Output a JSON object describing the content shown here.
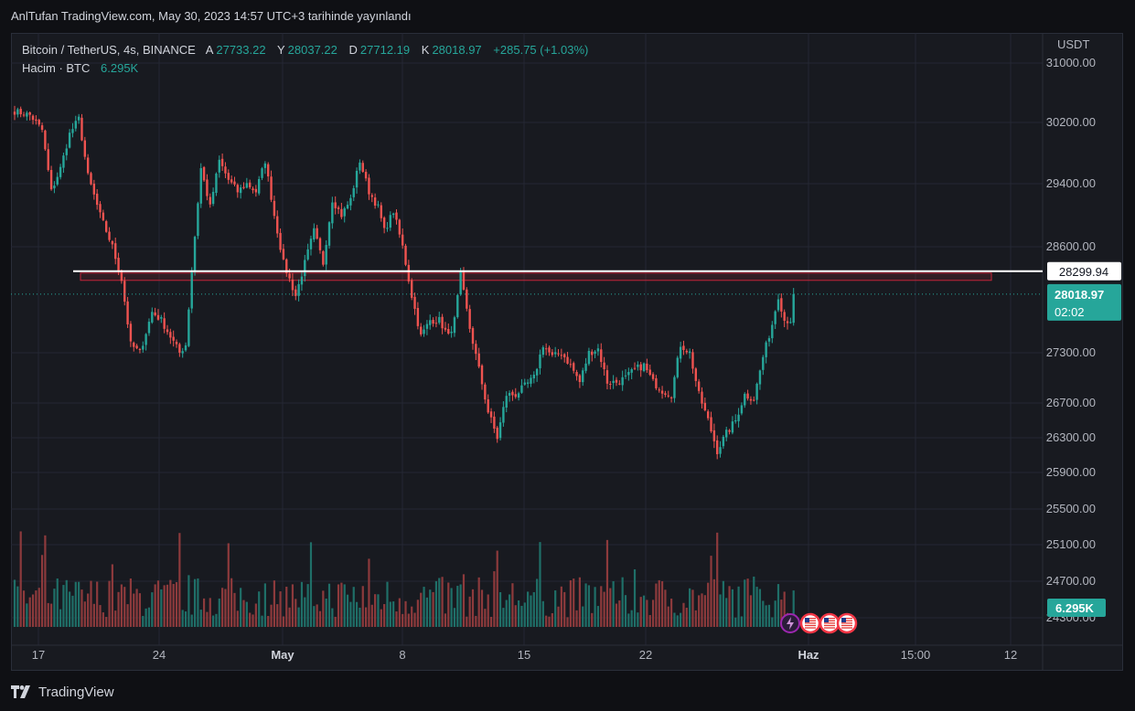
{
  "header": {
    "text": "AnlTufan TradingView.com, May 30, 2023 14:57 UTC+3 tarihinde yayınlandı"
  },
  "legend": {
    "symbol": "Bitcoin / TetherUS, 4s, BINANCE",
    "open_label": "A",
    "open": "27733.22",
    "high_label": "Y",
    "high": "28037.22",
    "low_label": "D",
    "low": "27712.19",
    "close_label": "K",
    "close": "28018.97",
    "change": "+285.75 (+1.03%)",
    "volume_label": "Hacim · BTC",
    "volume_value": "6.295K"
  },
  "footer": {
    "brand": "TradingView"
  },
  "colors": {
    "up": "#26a69a",
    "down": "#ef5350",
    "grid": "#242733",
    "text": "#b2b5be",
    "volume_up": "#1f6f68",
    "volume_down": "#8d3a3c"
  },
  "chart_data": {
    "type": "candlestick",
    "currency": "USDT",
    "y_ticks": [
      "31000.00",
      "30200.00",
      "29400.00",
      "28600.00",
      "27300.00",
      "26700.00",
      "26300.00",
      "25900.00",
      "25500.00",
      "25100.00",
      "24700.00",
      "24300.00"
    ],
    "x_ticks": [
      "17",
      "24",
      "May",
      "8",
      "15",
      "22",
      "Haz",
      "15:00",
      "12"
    ],
    "last_price": "28018.97",
    "countdown": "02:02",
    "horizontal_line_price": "28299.94",
    "volume_last": "6.295K",
    "zone": {
      "from": 28200,
      "to": 28330
    },
    "events": [
      "lightning-icon",
      "us-flag-icon",
      "us-flag-icon",
      "us-flag-icon"
    ],
    "anchors": [
      [
        0,
        30350
      ],
      [
        5,
        30300
      ],
      [
        9,
        30100
      ],
      [
        12,
        29300
      ],
      [
        15,
        29600
      ],
      [
        18,
        30050
      ],
      [
        21,
        30250
      ],
      [
        24,
        29500
      ],
      [
        28,
        29000
      ],
      [
        32,
        28600
      ],
      [
        35,
        28200
      ],
      [
        38,
        27400
      ],
      [
        41,
        27300
      ],
      [
        45,
        27800
      ],
      [
        48,
        27700
      ],
      [
        51,
        27500
      ],
      [
        54,
        27300
      ],
      [
        56,
        27400
      ],
      [
        58,
        28300
      ],
      [
        61,
        29600
      ],
      [
        64,
        29100
      ],
      [
        67,
        29700
      ],
      [
        70,
        29450
      ],
      [
        73,
        29300
      ],
      [
        76,
        29400
      ],
      [
        79,
        29300
      ],
      [
        82,
        29700
      ],
      [
        85,
        29000
      ],
      [
        88,
        28400
      ],
      [
        92,
        28000
      ],
      [
        95,
        28400
      ],
      [
        98,
        28800
      ],
      [
        101,
        28400
      ],
      [
        104,
        29200
      ],
      [
        107,
        29000
      ],
      [
        110,
        29200
      ],
      [
        113,
        29700
      ],
      [
        116,
        29300
      ],
      [
        119,
        29100
      ],
      [
        121,
        28800
      ],
      [
        124,
        29050
      ],
      [
        127,
        28600
      ],
      [
        130,
        28000
      ],
      [
        133,
        27500
      ],
      [
        136,
        27700
      ],
      [
        139,
        27700
      ],
      [
        142,
        27500
      ],
      [
        144,
        27700
      ],
      [
        146,
        28250
      ],
      [
        149,
        27600
      ],
      [
        152,
        27100
      ],
      [
        155,
        26600
      ],
      [
        158,
        26300
      ],
      [
        161,
        26800
      ],
      [
        164,
        26800
      ],
      [
        167,
        26900
      ],
      [
        170,
        27000
      ],
      [
        173,
        27400
      ],
      [
        176,
        27250
      ],
      [
        179,
        27300
      ],
      [
        182,
        27150
      ],
      [
        185,
        26950
      ],
      [
        188,
        27300
      ],
      [
        191,
        27350
      ],
      [
        194,
        26950
      ],
      [
        197,
        26950
      ],
      [
        200,
        27000
      ],
      [
        203,
        27100
      ],
      [
        206,
        27150
      ],
      [
        209,
        26950
      ],
      [
        212,
        26850
      ],
      [
        215,
        26800
      ],
      [
        218,
        27400
      ],
      [
        221,
        27300
      ],
      [
        224,
        26800
      ],
      [
        227,
        26500
      ],
      [
        230,
        26150
      ],
      [
        233,
        26350
      ],
      [
        236,
        26500
      ],
      [
        239,
        26800
      ],
      [
        242,
        26750
      ],
      [
        245,
        27250
      ],
      [
        248,
        27650
      ],
      [
        250,
        28000
      ],
      [
        252,
        27700
      ],
      [
        254,
        27700
      ],
      [
        255,
        28018.97
      ]
    ]
  }
}
